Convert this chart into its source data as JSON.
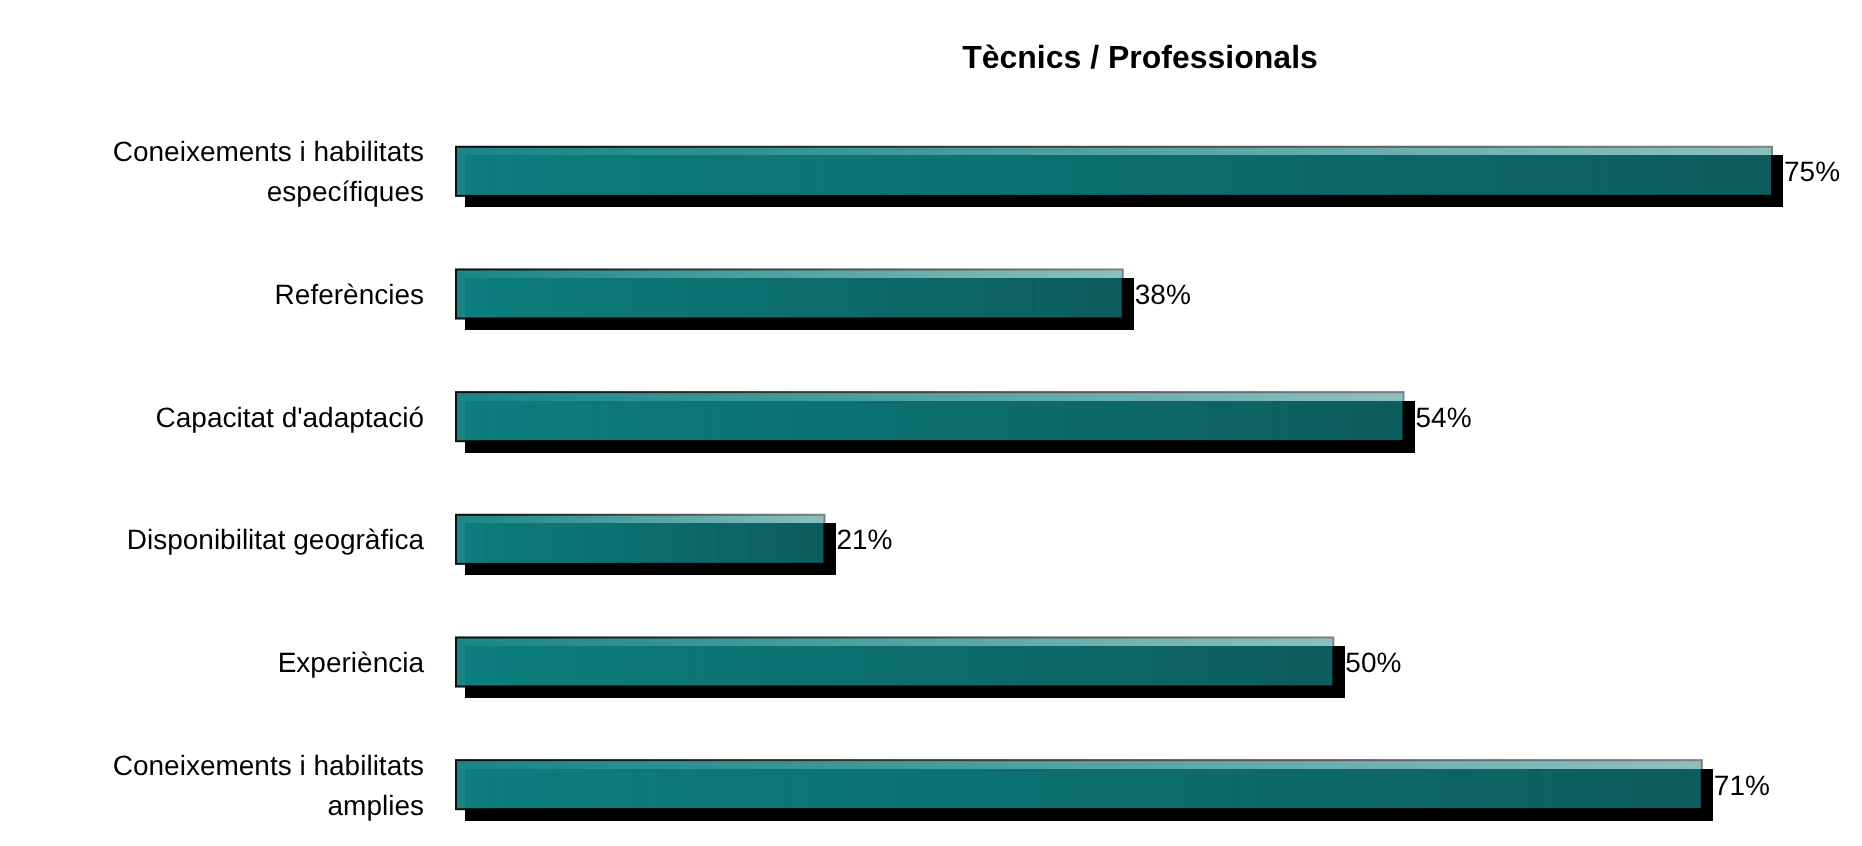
{
  "chart_data": {
    "type": "bar",
    "orientation": "horizontal",
    "title": "Tècnics / Professionals",
    "categories": [
      "Coneixements i habilitats específiques",
      "Referències",
      "Capacitat d'adaptació",
      "Disponibilitat geogràfica",
      "Experiència",
      "Coneixements i habilitats amplies"
    ],
    "values": [
      75,
      38,
      54,
      21,
      50,
      71
    ],
    "value_labels": [
      "75%",
      "38%",
      "54%",
      "21%",
      "50%",
      "71%"
    ],
    "color": "#0e8080",
    "data_labels": true
  }
}
